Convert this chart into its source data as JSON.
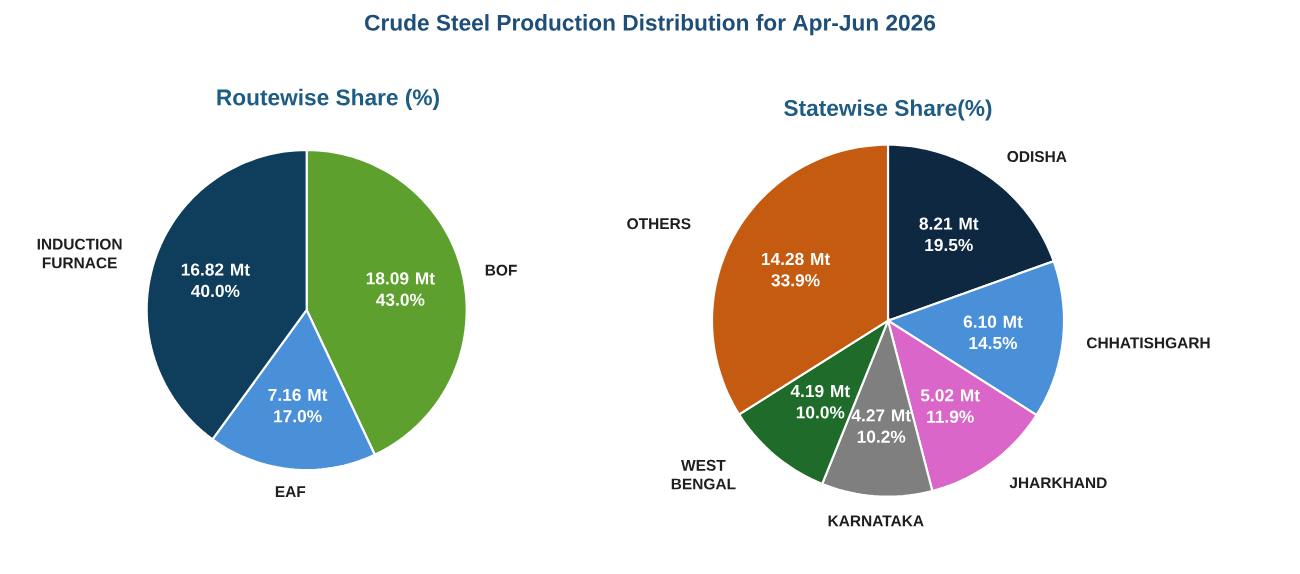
{
  "chart_data": [
    {
      "type": "pie",
      "title": "Crude Steel Production Distribution for Apr-Jun 2026",
      "subtitle": "Routewise Share (%)",
      "categories": [
        "BOF",
        "EAF",
        "INDUCTION FURNACE"
      ],
      "values": [
        18.09,
        7.16,
        16.82
      ],
      "colors": [
        "#5ea02d",
        "#4a90d9",
        "#0f3d5c"
      ],
      "value_labels": [
        "18.09 Mt 43.0%",
        "7.16 Mt 17.0%",
        "16.82 Mt 40.0%"
      ]
    },
    {
      "type": "pie",
      "title": "Statewise Share(%)",
      "categories": [
        "ODISHA",
        "CHHATISHGARH",
        "JHARKHAND",
        "KARNATAKA",
        "WEST BENGAL",
        "OTHERS"
      ],
      "values": [
        8.21,
        6.1,
        5.02,
        4.27,
        4.19,
        14.28
      ],
      "colors": [
        "#0e2841",
        "#4a90d9",
        "#d966c8",
        "#7f7f7f",
        "#1e6b2a",
        "#c55a11"
      ],
      "value_labels": [
        "8.21 Mt 19.5%",
        "6.10 Mt 14.5%",
        "5.02 Mt 11.9%",
        "4.27 Mt 10.2%",
        "4.19 Mt 10.0%",
        "14.28 Mt 33.9%"
      ]
    }
  ]
}
